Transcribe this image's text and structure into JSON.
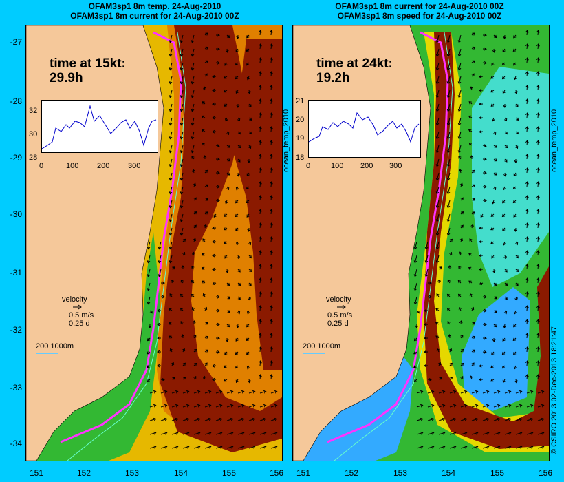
{
  "left": {
    "title_line1": "OFAM3sp1 8m temp. 24-Aug-2010",
    "title_line2": "OFAM3sp1 8m current for 24-Aug-2010 00Z",
    "time_label": "time at 15kt:",
    "time_value": "29.9h",
    "inset_y_ticks": [
      "32",
      "30",
      "28"
    ],
    "inset_x_ticks": [
      "0",
      "100",
      "200",
      "300"
    ],
    "velocity_label": "velocity",
    "velocity_speed": "0.5 m/s",
    "velocity_time": "0.25 d",
    "depth_label": "200  1000m"
  },
  "right": {
    "title_line1": "OFAM3sp1 8m current for 24-Aug-2010 00Z",
    "title_line2": "OFAM3sp1 8m speed for 24-Aug-2010 00Z",
    "time_label": "time at 24kt:",
    "time_value": "19.2h",
    "inset_y_ticks": [
      "21",
      "20",
      "19",
      "18"
    ],
    "inset_x_ticks": [
      "0",
      "100",
      "200",
      "300"
    ],
    "velocity_label": "velocity",
    "velocity_speed": "0.5 m/s",
    "velocity_time": "0.25 d",
    "depth_label": "200  1000m"
  },
  "axis": {
    "y_ticks": [
      "-27",
      "-28",
      "-29",
      "-30",
      "-31",
      "-32",
      "-33",
      "-34"
    ],
    "x_ticks": [
      "151",
      "152",
      "153",
      "154",
      "155",
      "156"
    ]
  },
  "side_labels": {
    "inset_axis_label": "ocean_temp_2010",
    "right_edge_label": "ocean_temp_2010",
    "credit": "© CSIRO 2013   02-Dec-2013 18:21:47"
  },
  "colors": {
    "background": "#00ccff",
    "land": "#f5c89a",
    "warm_core": "#8b1a00",
    "current_route": "#ff33ff"
  }
}
